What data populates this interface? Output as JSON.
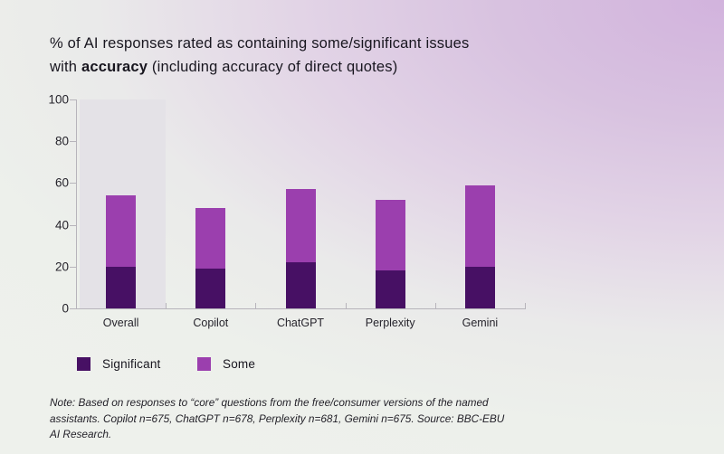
{
  "title": {
    "line1": "% of AI responses rated as containing some/significant issues",
    "line2_prefix": "with ",
    "line2_bold": "accuracy",
    "line2_suffix": " (including accuracy of direct quotes)"
  },
  "chart_data": {
    "type": "bar",
    "stacked": true,
    "categories": [
      "Overall",
      "Copilot",
      "ChatGPT",
      "Perplexity",
      "Gemini"
    ],
    "series": [
      {
        "name": "Significant",
        "color": "#471064",
        "values": [
          20,
          19,
          22,
          18,
          20
        ]
      },
      {
        "name": "Some",
        "color": "#9b3fae",
        "values": [
          34,
          29,
          35,
          34,
          39
        ]
      }
    ],
    "stack_totals": [
      54,
      48,
      57,
      52,
      59
    ],
    "ylim": [
      0,
      100
    ],
    "yticks": [
      0,
      20,
      40,
      60,
      80,
      100
    ],
    "grid": "off",
    "legend_position": "bottom-left",
    "highlighted_category": "Overall",
    "highlight_color": "#e4e2e7",
    "axis_color": "#b7b4bb"
  },
  "note": "Note: Based on responses to “core” questions from the free/consumer versions of the named assistants. Copilot n=675, ChatGPT n=678, Perplexity n=681, Gemini n=675. Source: BBC-EBU AI Research."
}
